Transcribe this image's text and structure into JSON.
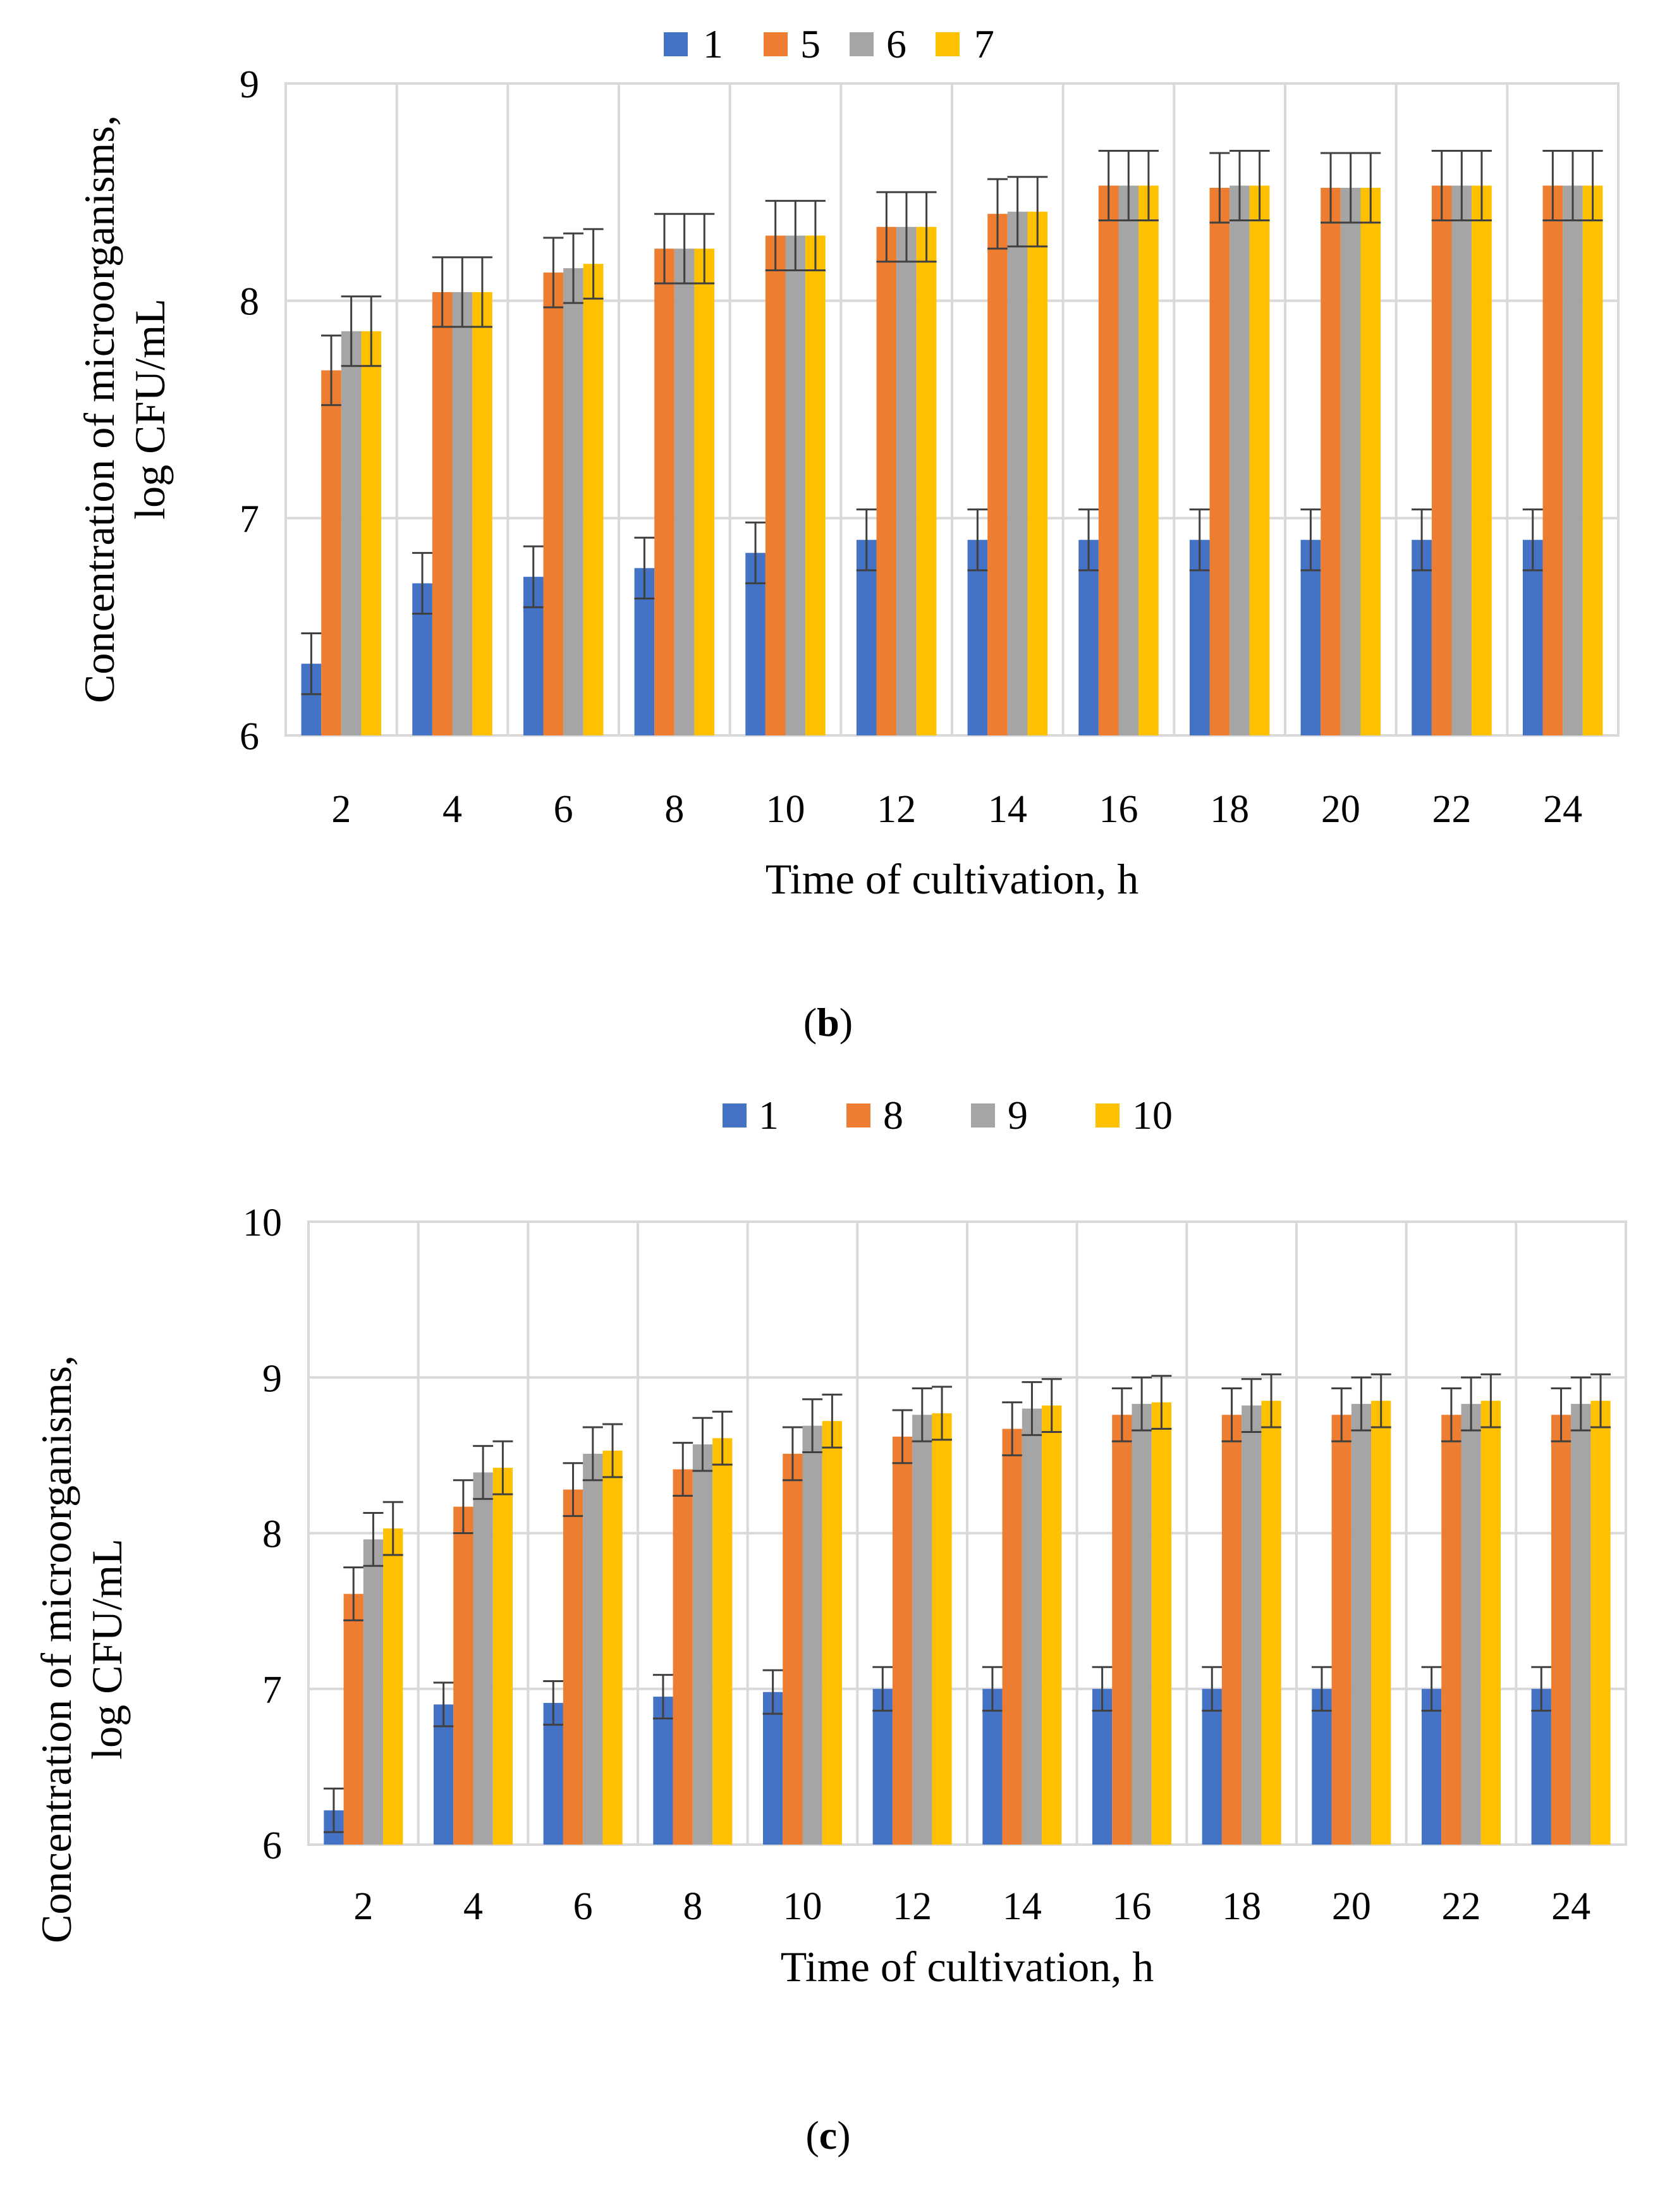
{
  "colors": {
    "s1": "#4472C4",
    "s2": "#ED7D31",
    "s3": "#A5A5A5",
    "s4": "#FFC000",
    "grid": "#D9D9D9",
    "error_bar": "#404040"
  },
  "chart_data": [
    {
      "type": "bar",
      "panel_label": "b",
      "caption_open": "(",
      "caption_close": ")",
      "xlabel": "Time of cultivation, h",
      "ylabel_line1": "Concentration  of microorganisms,",
      "ylabel_line2": "log CFU/mL",
      "ylim": [
        6,
        9
      ],
      "yticks": [
        "6",
        "7",
        "8",
        "9"
      ],
      "grid": true,
      "legend_position": "top",
      "categories": [
        "2",
        "4",
        "6",
        "8",
        "10",
        "12",
        "14",
        "16",
        "18",
        "20",
        "22",
        "24"
      ],
      "series": [
        {
          "name": "1",
          "values": [
            6.33,
            6.7,
            6.73,
            6.77,
            6.84,
            6.9,
            6.9,
            6.9,
            6.9,
            6.9,
            6.9,
            6.9
          ],
          "error": 0.14
        },
        {
          "name": "5",
          "values": [
            7.68,
            8.04,
            8.13,
            8.24,
            8.3,
            8.34,
            8.4,
            8.53,
            8.52,
            8.52,
            8.53,
            8.53
          ],
          "error": 0.16
        },
        {
          "name": "6",
          "values": [
            7.86,
            8.04,
            8.15,
            8.24,
            8.3,
            8.34,
            8.41,
            8.53,
            8.53,
            8.52,
            8.53,
            8.53
          ],
          "error": 0.16
        },
        {
          "name": "7",
          "values": [
            7.86,
            8.04,
            8.17,
            8.24,
            8.3,
            8.34,
            8.41,
            8.53,
            8.53,
            8.52,
            8.53,
            8.53
          ],
          "error": 0.16
        }
      ]
    },
    {
      "type": "bar",
      "panel_label": "c",
      "caption_open": "(",
      "caption_close": ")",
      "xlabel": "Time of cultivation, h",
      "ylabel_line1": "Concentration  of microorganisms,",
      "ylabel_line2": "log CFU/mL",
      "ylim": [
        6,
        10
      ],
      "yticks": [
        "6",
        "7",
        "8",
        "9",
        "10"
      ],
      "grid": true,
      "legend_position": "top",
      "categories": [
        "2",
        "4",
        "6",
        "8",
        "10",
        "12",
        "14",
        "16",
        "18",
        "20",
        "22",
        "24"
      ],
      "series": [
        {
          "name": "1",
          "values": [
            6.22,
            6.9,
            6.91,
            6.95,
            6.98,
            7.0,
            7.0,
            7.0,
            7.0,
            7.0,
            7.0,
            7.0
          ],
          "error": 0.14
        },
        {
          "name": "8",
          "values": [
            7.61,
            8.17,
            8.28,
            8.41,
            8.51,
            8.62,
            8.67,
            8.76,
            8.76,
            8.76,
            8.76,
            8.76
          ],
          "error": 0.17
        },
        {
          "name": "9",
          "values": [
            7.96,
            8.39,
            8.51,
            8.57,
            8.69,
            8.76,
            8.8,
            8.83,
            8.82,
            8.83,
            8.83,
            8.83
          ],
          "error": 0.17
        },
        {
          "name": "10",
          "values": [
            8.03,
            8.42,
            8.53,
            8.61,
            8.72,
            8.77,
            8.82,
            8.84,
            8.85,
            8.85,
            8.85,
            8.85
          ],
          "error": 0.17
        }
      ]
    }
  ]
}
